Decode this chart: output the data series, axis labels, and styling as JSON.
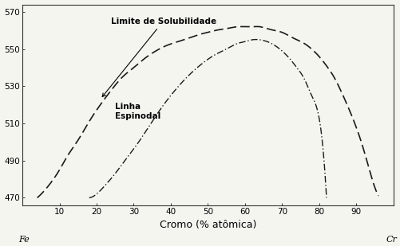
{
  "title": "",
  "xlabel": "Cromo (% atômica)",
  "ylabel": "",
  "fe_label": "Fe",
  "cr_label": "Cr",
  "xlim": [
    0,
    100
  ],
  "ylim": [
    466,
    574
  ],
  "yticks": [
    470,
    490,
    510,
    530,
    550,
    570
  ],
  "xticks": [
    0,
    10,
    20,
    30,
    40,
    50,
    60,
    70,
    80,
    90,
    100
  ],
  "xticklabels": [
    "",
    "10",
    "20",
    "30",
    "40",
    "50",
    "60",
    "70",
    "80",
    "90",
    ""
  ],
  "solubility_label": "Limite de Solubilidade",
  "spinodal_label": "Linha\nEspinodal",
  "line_color": "#1a1a1a",
  "bg_color": "#f5f5f0",
  "solubility_x": [
    4,
    6,
    8,
    10,
    12,
    15,
    18,
    21,
    24,
    27,
    30,
    33,
    36,
    39,
    42,
    45,
    48,
    50,
    52,
    55,
    58,
    60,
    62,
    64,
    66,
    68,
    70,
    72,
    74,
    76,
    78,
    80,
    82,
    84,
    86,
    88,
    90,
    92,
    94,
    96
  ],
  "solubility_y": [
    470,
    474,
    479,
    485,
    492,
    501,
    511,
    520,
    528,
    535,
    540,
    545,
    549,
    552,
    554,
    556,
    558,
    559,
    560,
    561,
    562,
    562,
    562,
    562,
    561,
    560,
    559,
    557,
    555,
    553,
    550,
    546,
    541,
    535,
    527,
    518,
    508,
    496,
    482,
    471
  ],
  "spinodal_x": [
    18,
    20,
    22,
    25,
    28,
    31,
    34,
    37,
    40,
    43,
    46,
    49,
    52,
    55,
    58,
    60,
    62,
    64,
    66,
    68,
    70,
    72,
    74,
    76,
    78,
    80,
    82
  ],
  "spinodal_y": [
    470,
    472,
    476,
    483,
    491,
    499,
    508,
    517,
    525,
    532,
    538,
    543,
    547,
    550,
    553,
    554,
    555,
    555,
    554,
    552,
    549,
    545,
    540,
    534,
    525,
    513,
    470
  ]
}
